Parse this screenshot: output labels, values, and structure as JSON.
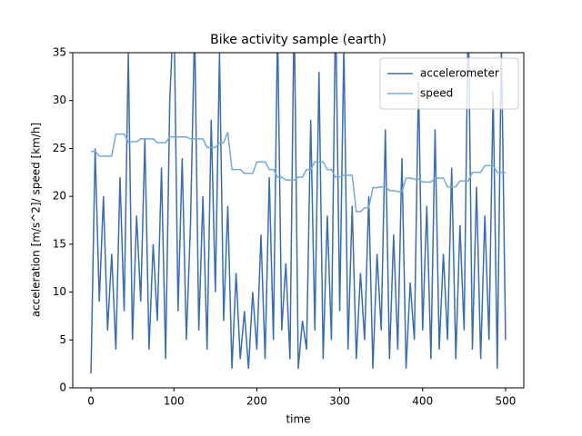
{
  "chart_data": {
    "type": "line",
    "title": "Bike activity sample (earth)",
    "x_label": "time",
    "y_label": "acceleration [m/s^2]/ speed [km/h]",
    "x": [
      0,
      5,
      10,
      15,
      20,
      25,
      30,
      35,
      40,
      45,
      50,
      55,
      60,
      65,
      70,
      75,
      80,
      85,
      90,
      95,
      100,
      105,
      110,
      115,
      120,
      125,
      130,
      135,
      140,
      145,
      150,
      155,
      160,
      165,
      170,
      175,
      180,
      185,
      190,
      195,
      200,
      205,
      210,
      215,
      220,
      225,
      230,
      235,
      240,
      245,
      250,
      255,
      260,
      265,
      270,
      275,
      280,
      285,
      290,
      295,
      300,
      305,
      310,
      315,
      320,
      325,
      330,
      335,
      340,
      345,
      350,
      355,
      360,
      365,
      370,
      375,
      380,
      385,
      390,
      395,
      400,
      405,
      410,
      415,
      420,
      425,
      430,
      435,
      440,
      445,
      450,
      455,
      460,
      465,
      470,
      475,
      480,
      485,
      490,
      495,
      500
    ],
    "series": [
      {
        "name": "accelerometer",
        "color": "#3a6eb0",
        "values": [
          1.5,
          25,
          9,
          20,
          6,
          14,
          4,
          22,
          8,
          35,
          5,
          18,
          9,
          26,
          4,
          15,
          7,
          23,
          3,
          30,
          40,
          8,
          24,
          5,
          17,
          38,
          6,
          20,
          4,
          28,
          10,
          35,
          7,
          19,
          2,
          12,
          3,
          8,
          2,
          10,
          4,
          16,
          3,
          22,
          5,
          38,
          6,
          13,
          3,
          40,
          2,
          7,
          4,
          28,
          6,
          33,
          3,
          18,
          5,
          40,
          8,
          36,
          4,
          19,
          3,
          12,
          5,
          20,
          2,
          14,
          6,
          27,
          3,
          16,
          4,
          24,
          2,
          11,
          5,
          32,
          6,
          19,
          3,
          27,
          4,
          14,
          5,
          23,
          3,
          17,
          6,
          40,
          4,
          21,
          3,
          18,
          5,
          31,
          2,
          36,
          5
        ]
      },
      {
        "name": "speed",
        "color": "#74a9d6",
        "values": [
          24.7,
          24.7,
          24.2,
          24.2,
          24.2,
          24.2,
          26.5,
          26.5,
          26.5,
          25.7,
          25.7,
          25.7,
          26,
          26,
          26,
          26,
          25.6,
          25.6,
          25.6,
          26.2,
          26.2,
          26.2,
          26.2,
          26.2,
          26,
          26,
          26,
          26,
          25.1,
          25.1,
          25.1,
          25.6,
          25.6,
          26.7,
          22.8,
          22.8,
          22.8,
          22.4,
          22.4,
          22.4,
          23.6,
          23.6,
          23.6,
          22.8,
          22.8,
          22,
          22,
          21.7,
          21.7,
          21.7,
          22,
          22,
          22.8,
          22.8,
          23.6,
          23.6,
          23.6,
          22.8,
          22.8,
          22,
          22,
          22.2,
          22.2,
          22.2,
          18.4,
          18.4,
          18.8,
          18.8,
          20.9,
          20.9,
          21,
          21,
          20.6,
          20.6,
          20.5,
          20.5,
          21.9,
          21.9,
          21.8,
          21.8,
          21.5,
          21.5,
          21.5,
          21.9,
          21.9,
          21.9,
          21,
          21,
          21,
          21.6,
          21.6,
          21.6,
          22.5,
          22.5,
          22.5,
          23.2,
          23.2,
          23.2,
          22.5,
          22.5,
          22.5
        ]
      }
    ],
    "xlim": [
      -22,
      522
    ],
    "ylim": [
      0,
      35
    ],
    "xticks": [
      0,
      100,
      200,
      300,
      400,
      500
    ],
    "yticks": [
      0,
      5,
      10,
      15,
      20,
      25,
      30,
      35
    ],
    "legend": "upper right"
  }
}
